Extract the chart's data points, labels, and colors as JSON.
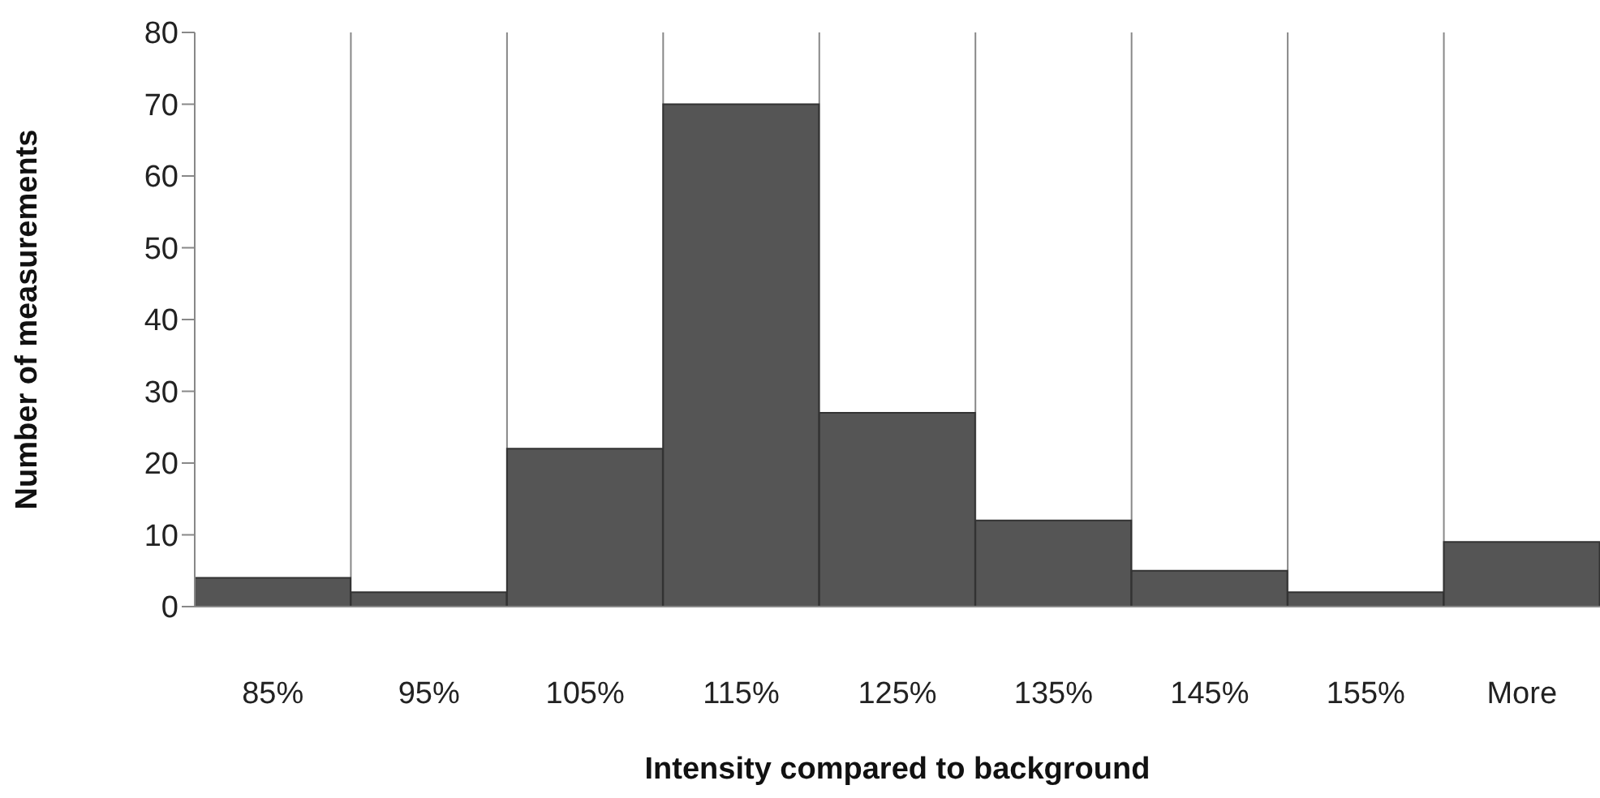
{
  "chart_data": {
    "type": "bar",
    "xlabel": "Intensity compared to background",
    "ylabel": "Number of measurements",
    "categories": [
      "85%",
      "95%",
      "105%",
      "115%",
      "125%",
      "135%",
      "145%",
      "155%",
      "More"
    ],
    "values": [
      4,
      2,
      22,
      70,
      27,
      12,
      5,
      2,
      9
    ],
    "color": "#555555",
    "ylim": [
      0,
      80
    ],
    "yticks": [
      0,
      10,
      20,
      30,
      40,
      50,
      60,
      70,
      80
    ],
    "grid": "x"
  }
}
